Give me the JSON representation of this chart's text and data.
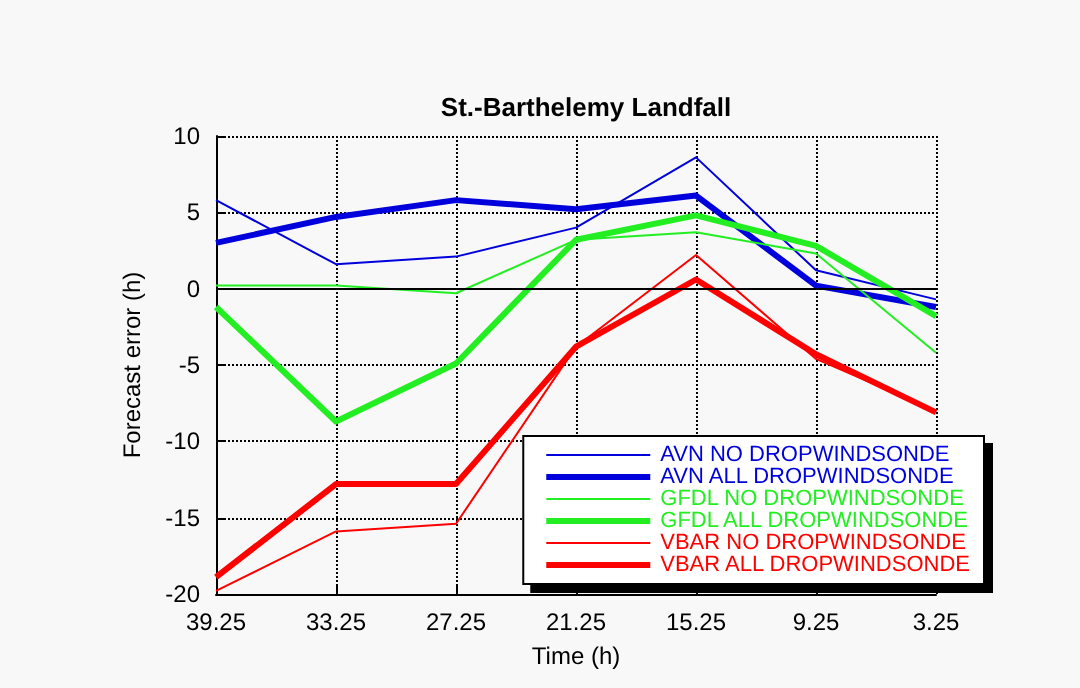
{
  "chart_data": {
    "type": "line",
    "title": "St.-Barthelemy Landfall",
    "xlabel": "Time (h)",
    "ylabel": "Forecast error (h)",
    "x": [
      39.25,
      33.25,
      27.25,
      21.25,
      15.25,
      9.25,
      3.25
    ],
    "xlim": [
      39.25,
      3.25
    ],
    "xticks": [
      39.25,
      33.25,
      27.25,
      21.25,
      15.25,
      9.25,
      3.25
    ],
    "ylim": [
      -20,
      10
    ],
    "yticks": [
      -20,
      -15,
      -10,
      -5,
      0,
      5,
      10
    ],
    "series": [
      {
        "name": "AVN NO DROPWINDSONDE",
        "color": "#0000dd",
        "values": [
          5.8,
          1.6,
          2.1,
          4.0,
          8.6,
          1.2,
          -0.7
        ]
      },
      {
        "name": "AVN ALL DROPWINDSONDE",
        "color": "#0000dd",
        "values": [
          3.0,
          4.7,
          5.8,
          5.2,
          6.1,
          0.2,
          -1.2
        ]
      },
      {
        "name": "GFDL NO DROPWINDSONDE",
        "color": "#22ee22",
        "values": [
          0.2,
          0.2,
          -0.3,
          3.2,
          3.7,
          2.3,
          -4.2
        ]
      },
      {
        "name": "GFDL ALL DROPWINDSONDE",
        "color": "#22ee22",
        "values": [
          -1.2,
          -8.7,
          -4.9,
          3.2,
          4.8,
          2.8,
          -1.8
        ]
      },
      {
        "name": "VBAR NO DROPWINDSONDE",
        "color": "#ff0000",
        "values": [
          -19.8,
          -15.9,
          -15.4,
          -3.8,
          2.2,
          -4.6,
          -8.0
        ]
      },
      {
        "name": "VBAR ALL DROPWINDSONDE",
        "color": "#ff0000",
        "values": [
          -18.9,
          -12.8,
          -12.8,
          -3.8,
          0.6,
          -4.3,
          -8.1
        ]
      }
    ],
    "ref_lines": [
      {
        "axis": "y",
        "value": 0,
        "color": "#000000"
      }
    ],
    "grid": true,
    "legend": "bottom right",
    "marker": "none",
    "line_style": "solid"
  }
}
